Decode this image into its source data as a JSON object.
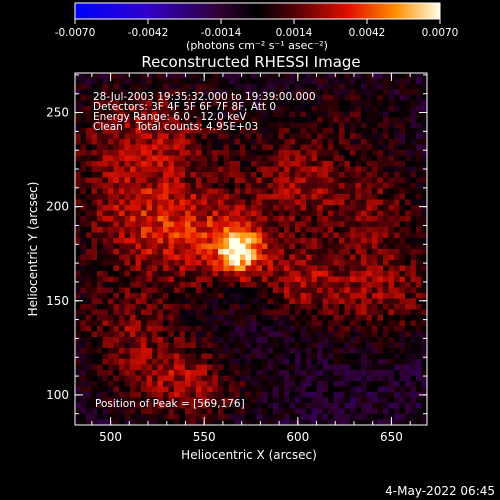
{
  "chart_data": {
    "type": "heatmap",
    "title": "Reconstructed RHESSI Image",
    "xlabel": "Heliocentric X (arcsec)",
    "ylabel": "Heliocentric Y (arcsec)",
    "xlim": [
      481,
      669
    ],
    "ylim": [
      84,
      271
    ],
    "x_ticks": [
      500,
      550,
      600,
      650
    ],
    "y_ticks": [
      100,
      150,
      200,
      250
    ],
    "colorbar": {
      "range": [
        -0.007,
        0.007
      ],
      "ticks": [
        "-0.0070",
        "-0.0042",
        "-0.0014",
        "0.0014",
        "0.0042",
        "0.0070"
      ],
      "units": "(photons cm⁻² s⁻¹ asec⁻²)"
    },
    "info_lines": [
      "28-Jul-2003 19:35:32.000 to 19:39:00.000",
      "Detectors: 3F 4F 5F 6F 7F 8F, Att 0",
      "Energy Range: 6.0 - 12.0 keV",
      "Clean    Total counts: 4.95E+03"
    ],
    "peak_label": "Position of Peak = [569,176]",
    "peak": {
      "x": 569,
      "y": 176
    },
    "emission_blobs": [
      {
        "x": 569,
        "y": 176,
        "sx": 8,
        "sy": 8,
        "amp": 0.0055
      },
      {
        "x": 555,
        "y": 182,
        "sx": 30,
        "sy": 18,
        "amp": 0.0032
      },
      {
        "x": 515,
        "y": 200,
        "sx": 28,
        "sy": 22,
        "amp": 0.0028
      },
      {
        "x": 520,
        "y": 240,
        "sx": 30,
        "sy": 18,
        "amp": 0.0026
      },
      {
        "x": 600,
        "y": 215,
        "sx": 20,
        "sy": 15,
        "amp": 0.0026
      },
      {
        "x": 640,
        "y": 200,
        "sx": 20,
        "sy": 20,
        "amp": 0.0022
      },
      {
        "x": 640,
        "y": 155,
        "sx": 28,
        "sy": 18,
        "amp": 0.0028
      },
      {
        "x": 510,
        "y": 135,
        "sx": 22,
        "sy": 20,
        "amp": 0.0025
      },
      {
        "x": 540,
        "y": 105,
        "sx": 22,
        "sy": 14,
        "amp": 0.003
      },
      {
        "x": 600,
        "y": 160,
        "sx": 14,
        "sy": 12,
        "amp": 0.0018
      },
      {
        "x": 620,
        "y": 250,
        "sx": 30,
        "sy": 14,
        "amp": 0.0012
      }
    ],
    "background_level": -0.0008
  },
  "timestamp": "4-May-2022 06:45"
}
